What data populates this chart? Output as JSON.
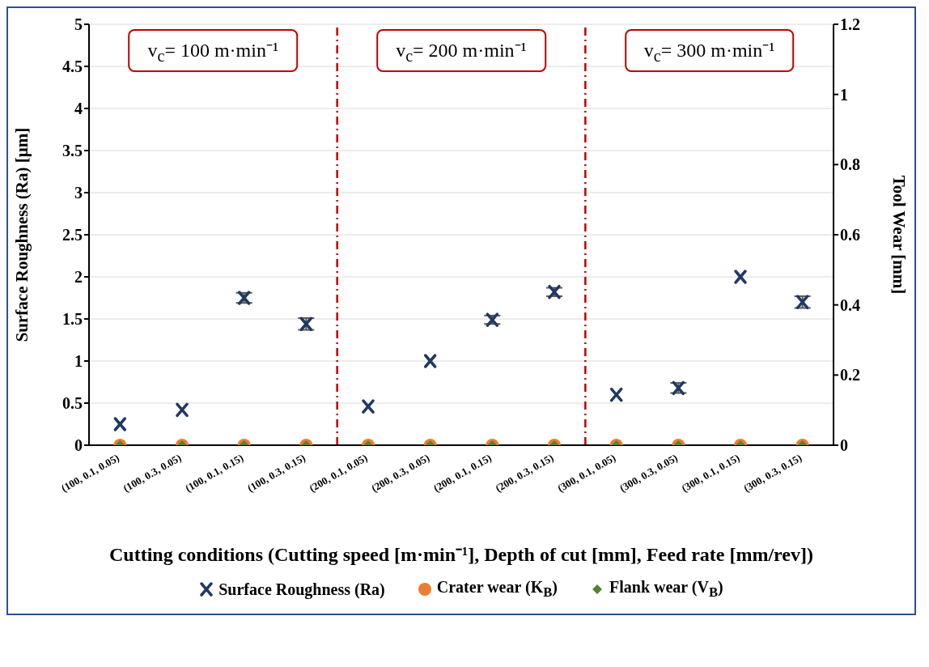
{
  "chart_data": {
    "type": "scatter",
    "categories": [
      "(100, 0.1, 0.05)",
      "(100, 0.3, 0.05)",
      "(100, 0.1, 0.15)",
      "(100, 0.3, 0.15)",
      "(200, 0.1, 0.05)",
      "(200, 0.3, 0.05)",
      "(200, 0.1, 0.15)",
      "(200, 0.3, 0.15)",
      "(300, 0.1, 0.05)",
      "(300, 0.3, 0.05)",
      "(300, 0.1, 0.15)",
      "(300, 0.3, 0.15)"
    ],
    "series": [
      {
        "name": "Surface Roughness (Ra)",
        "color": "#203864",
        "marker": "cross",
        "values": [
          0.25,
          0.42,
          1.75,
          1.44,
          0.46,
          1.0,
          1.49,
          1.82,
          0.6,
          0.68,
          2.0,
          1.7
        ],
        "errors": [
          null,
          null,
          0.06,
          0.07,
          null,
          null,
          0.05,
          0.05,
          null,
          0.06,
          null,
          0.07
        ]
      },
      {
        "name": "Crater wear (K$_{B}$)",
        "color": "#ed7d31",
        "marker": "circle",
        "values": [
          0,
          0,
          0,
          0,
          0,
          0,
          0,
          0,
          0,
          0,
          0,
          0
        ]
      },
      {
        "name": "Flank wear (V$_{B}$)",
        "color": "#548235",
        "marker": "diamond",
        "values": [
          0,
          0,
          0,
          0,
          0,
          0,
          0,
          0,
          0,
          0,
          0,
          0
        ]
      }
    ],
    "xlabel": "Cutting conditions (Cutting speed [m·min⁻¹], Depth of cut [mm], Feed rate [mm/rev])",
    "ylabel": "Surface Roughness (Ra) [µm]",
    "y2label": "Tool Wear [mm]",
    "ylim": [
      0,
      5
    ],
    "yticks": [
      0,
      0.5,
      1,
      1.5,
      2,
      2.5,
      3,
      3.5,
      4,
      4.5,
      5
    ],
    "y2lim": [
      0,
      1.2
    ],
    "y2ticks": [
      0,
      0.2,
      0.4,
      0.6,
      0.8,
      1,
      1.2
    ],
    "annotations": [
      "v$_{c}$= 100 m·min⁻¹",
      "v$_{c}$= 200 m·min⁻¹",
      "v$_{c}$= 300 m·min⁻¹"
    ],
    "grid": "y",
    "legend": "bottom"
  }
}
